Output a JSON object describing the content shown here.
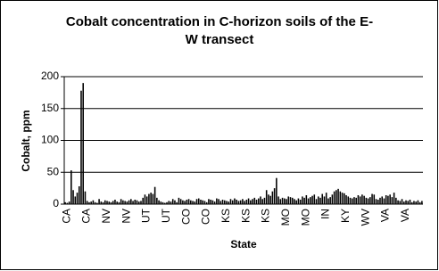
{
  "chart_data": {
    "type": "bar",
    "title": [
      "Cobalt concentration in C-horizon soils of the E-",
      "W transect"
    ],
    "x_label": "State",
    "y_label": "Cobalt, ppm",
    "categories": [
      "CA",
      null,
      null,
      null,
      null,
      null,
      null,
      null,
      null,
      null,
      "CA",
      null,
      null,
      null,
      null,
      null,
      null,
      null,
      null,
      null,
      "NV",
      null,
      null,
      null,
      null,
      null,
      null,
      null,
      null,
      null,
      "NV",
      null,
      null,
      null,
      null,
      null,
      null,
      null,
      null,
      null,
      "UT",
      null,
      null,
      null,
      null,
      null,
      null,
      null,
      null,
      null,
      "UT",
      null,
      null,
      null,
      null,
      null,
      null,
      null,
      null,
      null,
      "CO",
      null,
      null,
      null,
      null,
      null,
      null,
      null,
      null,
      null,
      "CO",
      null,
      null,
      null,
      null,
      null,
      null,
      null,
      null,
      null,
      "KS",
      null,
      null,
      null,
      null,
      null,
      null,
      null,
      null,
      null,
      "KS",
      null,
      null,
      null,
      null,
      null,
      null,
      null,
      null,
      null,
      "KS",
      null,
      null,
      null,
      null,
      null,
      null,
      null,
      null,
      null,
      "MO",
      null,
      null,
      null,
      null,
      null,
      null,
      null,
      null,
      null,
      "MO",
      null,
      null,
      null,
      null,
      null,
      null,
      null,
      null,
      null,
      "IN",
      null,
      null,
      null,
      null,
      null,
      null,
      null,
      null,
      null,
      "KY",
      null,
      null,
      null,
      null,
      null,
      null,
      null,
      null,
      null,
      "WV",
      null,
      null,
      null,
      null,
      null,
      null,
      null,
      null,
      null,
      "VA",
      null,
      null,
      null,
      null,
      null,
      null,
      null,
      null,
      null,
      "VA",
      null,
      null,
      null,
      null,
      null,
      null,
      null,
      null,
      null
    ],
    "values": [
      3,
      2,
      4,
      53,
      22,
      12,
      18,
      28,
      178,
      190,
      20,
      5,
      3,
      4,
      6,
      3,
      2,
      8,
      4,
      3,
      6,
      5,
      4,
      3,
      5,
      7,
      4,
      3,
      8,
      6,
      5,
      4,
      6,
      8,
      5,
      7,
      6,
      4,
      5,
      10,
      15,
      12,
      16,
      18,
      16,
      27,
      10,
      6,
      4,
      3,
      2,
      3,
      5,
      4,
      8,
      6,
      3,
      10,
      8,
      6,
      5,
      7,
      8,
      6,
      5,
      4,
      8,
      9,
      7,
      6,
      5,
      3,
      8,
      7,
      6,
      4,
      9,
      8,
      5,
      7,
      6,
      5,
      4,
      8,
      6,
      9,
      7,
      5,
      6,
      8,
      5,
      7,
      9,
      6,
      8,
      10,
      7,
      9,
      12,
      8,
      10,
      22,
      15,
      13,
      20,
      25,
      41,
      12,
      8,
      10,
      9,
      8,
      12,
      11,
      10,
      8,
      6,
      9,
      7,
      12,
      10,
      14,
      9,
      11,
      13,
      15,
      8,
      12,
      10,
      16,
      12,
      18,
      9,
      11,
      15,
      20,
      22,
      24,
      20,
      18,
      17,
      14,
      12,
      10,
      9,
      11,
      10,
      14,
      12,
      15,
      13,
      10,
      9,
      11,
      16,
      15,
      8,
      7,
      10,
      12,
      9,
      14,
      13,
      15,
      11,
      18,
      10,
      6,
      5,
      8,
      4,
      6,
      5,
      7,
      3,
      5,
      4,
      6,
      3,
      5
    ],
    "color": "#000000",
    "ylim": [
      0,
      200
    ],
    "yticks": [
      0,
      50,
      100,
      150,
      200
    ],
    "grid": true
  }
}
